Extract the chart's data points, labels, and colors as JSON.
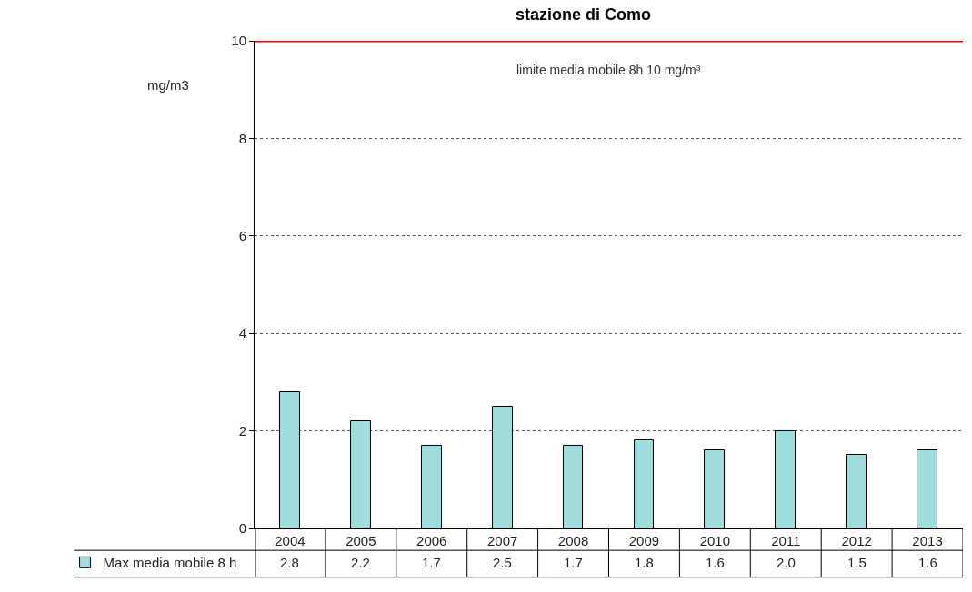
{
  "chart_data": {
    "type": "bar",
    "title": "stazione di Como",
    "ylabel": "mg/m3",
    "categories": [
      "2004",
      "2005",
      "2006",
      "2007",
      "2008",
      "2009",
      "2010",
      "2011",
      "2012",
      "2013"
    ],
    "series": [
      {
        "name": "Max media mobile 8 h",
        "color": "#a0dcdc",
        "values": [
          2.8,
          2.2,
          1.7,
          2.5,
          1.7,
          1.8,
          1.6,
          2.0,
          1.5,
          1.6
        ],
        "value_labels": [
          "2.8",
          "2.2",
          "1.7",
          "2.5",
          "1.7",
          "1.8",
          "1.6",
          "2.0",
          "1.5",
          "1.6"
        ]
      }
    ],
    "ylim": [
      0,
      10
    ],
    "yticks": [
      0,
      2,
      4,
      6,
      8,
      10
    ],
    "grid": "y",
    "legend": "bottom left",
    "ref_lines": [
      {
        "axis": "y",
        "value": 10,
        "label": "limite media mobile 8h 10 mg/m³",
        "color": "#ff0000"
      }
    ]
  }
}
